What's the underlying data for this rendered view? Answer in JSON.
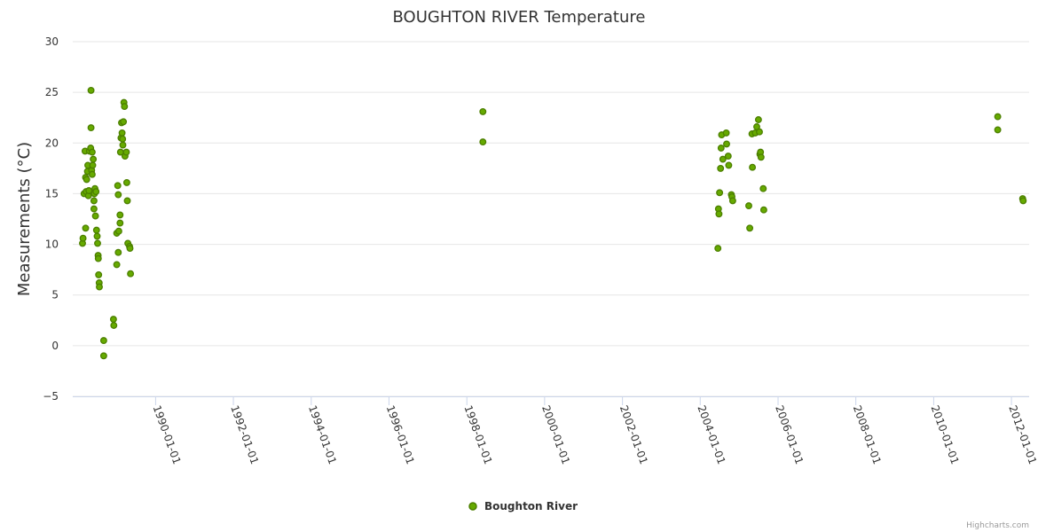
{
  "chart_data": {
    "type": "scatter",
    "title": "BOUGHTON RIVER Temperature",
    "ylabel": "Measurements (°C)",
    "xlabel": "",
    "x_axis_type": "date",
    "xlim": [
      "1987-11-15",
      "2012-06-15"
    ],
    "ylim": [
      -5,
      30
    ],
    "y_ticks": [
      -5,
      0,
      5,
      10,
      15,
      20,
      25,
      30
    ],
    "x_ticks": [
      "1990-01-01",
      "1992-01-01",
      "1994-01-01",
      "1996-01-01",
      "1998-01-01",
      "2000-01-01",
      "2002-01-01",
      "2004-01-01",
      "2006-01-01",
      "2008-01-01",
      "2010-01-01",
      "2012-01-01"
    ],
    "grid": true,
    "legend_position": "bottom-center",
    "series": [
      {
        "name": "Boughton River",
        "color": "#66aa00",
        "marker_edge_color": "#4c7f00",
        "points": [
          [
            "1988-02-15",
            10.1
          ],
          [
            "1988-02-20",
            10.6
          ],
          [
            "1988-03-01",
            15.0
          ],
          [
            "1988-03-10",
            19.2
          ],
          [
            "1988-03-15",
            11.6
          ],
          [
            "1988-03-15",
            16.6
          ],
          [
            "1988-03-20",
            15.2
          ],
          [
            "1988-03-25",
            16.4
          ],
          [
            "1988-04-01",
            17.2
          ],
          [
            "1988-04-05",
            17.8
          ],
          [
            "1988-04-10",
            14.8
          ],
          [
            "1988-04-15",
            15.3
          ],
          [
            "1988-04-20",
            19.2
          ],
          [
            "1988-05-01",
            19.5
          ],
          [
            "1988-05-05",
            25.2
          ],
          [
            "1988-05-05",
            21.5
          ],
          [
            "1988-05-10",
            17.3
          ],
          [
            "1988-05-15",
            16.9
          ],
          [
            "1988-05-15",
            19.1
          ],
          [
            "1988-05-20",
            17.8
          ],
          [
            "1988-05-25",
            18.4
          ],
          [
            "1988-06-01",
            14.3
          ],
          [
            "1988-06-01",
            13.5
          ],
          [
            "1988-06-05",
            15.0
          ],
          [
            "1988-06-10",
            15.5
          ],
          [
            "1988-06-15",
            12.8
          ],
          [
            "1988-06-20",
            15.2
          ],
          [
            "1988-06-25",
            11.4
          ],
          [
            "1988-07-01",
            10.8
          ],
          [
            "1988-07-05",
            10.1
          ],
          [
            "1988-07-10",
            8.9
          ],
          [
            "1988-07-12",
            8.6
          ],
          [
            "1988-07-15",
            7.0
          ],
          [
            "1988-07-20",
            6.2
          ],
          [
            "1988-07-22",
            5.8
          ],
          [
            "1988-09-01",
            0.5
          ],
          [
            "1988-09-01",
            -1.0
          ],
          [
            "1988-12-01",
            2.6
          ],
          [
            "1988-12-05",
            2.0
          ],
          [
            "1989-01-01",
            8.0
          ],
          [
            "1989-01-01",
            11.1
          ],
          [
            "1989-01-10",
            15.8
          ],
          [
            "1989-01-15",
            14.9
          ],
          [
            "1989-01-15",
            9.2
          ],
          [
            "1989-01-20",
            11.3
          ],
          [
            "1989-02-01",
            12.9
          ],
          [
            "1989-02-01",
            12.1
          ],
          [
            "1989-02-05",
            19.1
          ],
          [
            "1989-02-10",
            20.5
          ],
          [
            "1989-02-15",
            22.0
          ],
          [
            "1989-02-20",
            21.0
          ],
          [
            "1989-02-25",
            20.4
          ],
          [
            "1989-02-28",
            19.8
          ],
          [
            "1989-03-05",
            22.1
          ],
          [
            "1989-03-10",
            24.0
          ],
          [
            "1989-03-15",
            23.6
          ],
          [
            "1989-03-20",
            18.7
          ],
          [
            "1989-04-01",
            19.1
          ],
          [
            "1989-04-05",
            16.1
          ],
          [
            "1989-04-10",
            14.3
          ],
          [
            "1989-04-15",
            10.1
          ],
          [
            "1989-05-01",
            9.8
          ],
          [
            "1989-05-05",
            9.6
          ],
          [
            "1989-05-10",
            7.1
          ],
          [
            "1998-06-01",
            23.1
          ],
          [
            "1998-06-01",
            20.1
          ],
          [
            "2004-06-15",
            9.6
          ],
          [
            "2004-06-20",
            13.5
          ],
          [
            "2004-06-25",
            13.0
          ],
          [
            "2004-07-01",
            15.1
          ],
          [
            "2004-07-10",
            17.5
          ],
          [
            "2004-07-15",
            19.5
          ],
          [
            "2004-07-20",
            20.8
          ],
          [
            "2004-08-01",
            18.4
          ],
          [
            "2004-09-01",
            21.0
          ],
          [
            "2004-09-05",
            19.9
          ],
          [
            "2004-09-20",
            18.7
          ],
          [
            "2004-09-25",
            17.8
          ],
          [
            "2004-10-20",
            14.9
          ],
          [
            "2004-10-25",
            14.7
          ],
          [
            "2004-11-01",
            14.3
          ],
          [
            "2005-04-01",
            13.8
          ],
          [
            "2005-04-10",
            11.6
          ],
          [
            "2005-05-01",
            20.9
          ],
          [
            "2005-05-05",
            17.6
          ],
          [
            "2005-06-01",
            21.0
          ],
          [
            "2005-06-15",
            21.6
          ],
          [
            "2005-07-01",
            22.3
          ],
          [
            "2005-07-10",
            21.1
          ],
          [
            "2005-07-15",
            18.9
          ],
          [
            "2005-07-20",
            19.1
          ],
          [
            "2005-07-25",
            18.6
          ],
          [
            "2005-08-15",
            15.5
          ],
          [
            "2005-08-20",
            13.4
          ],
          [
            "2011-08-25",
            22.6
          ],
          [
            "2011-08-25",
            21.3
          ],
          [
            "2012-04-15",
            14.5
          ],
          [
            "2012-04-20",
            14.3
          ]
        ]
      }
    ],
    "credits": "Highcharts.com"
  }
}
